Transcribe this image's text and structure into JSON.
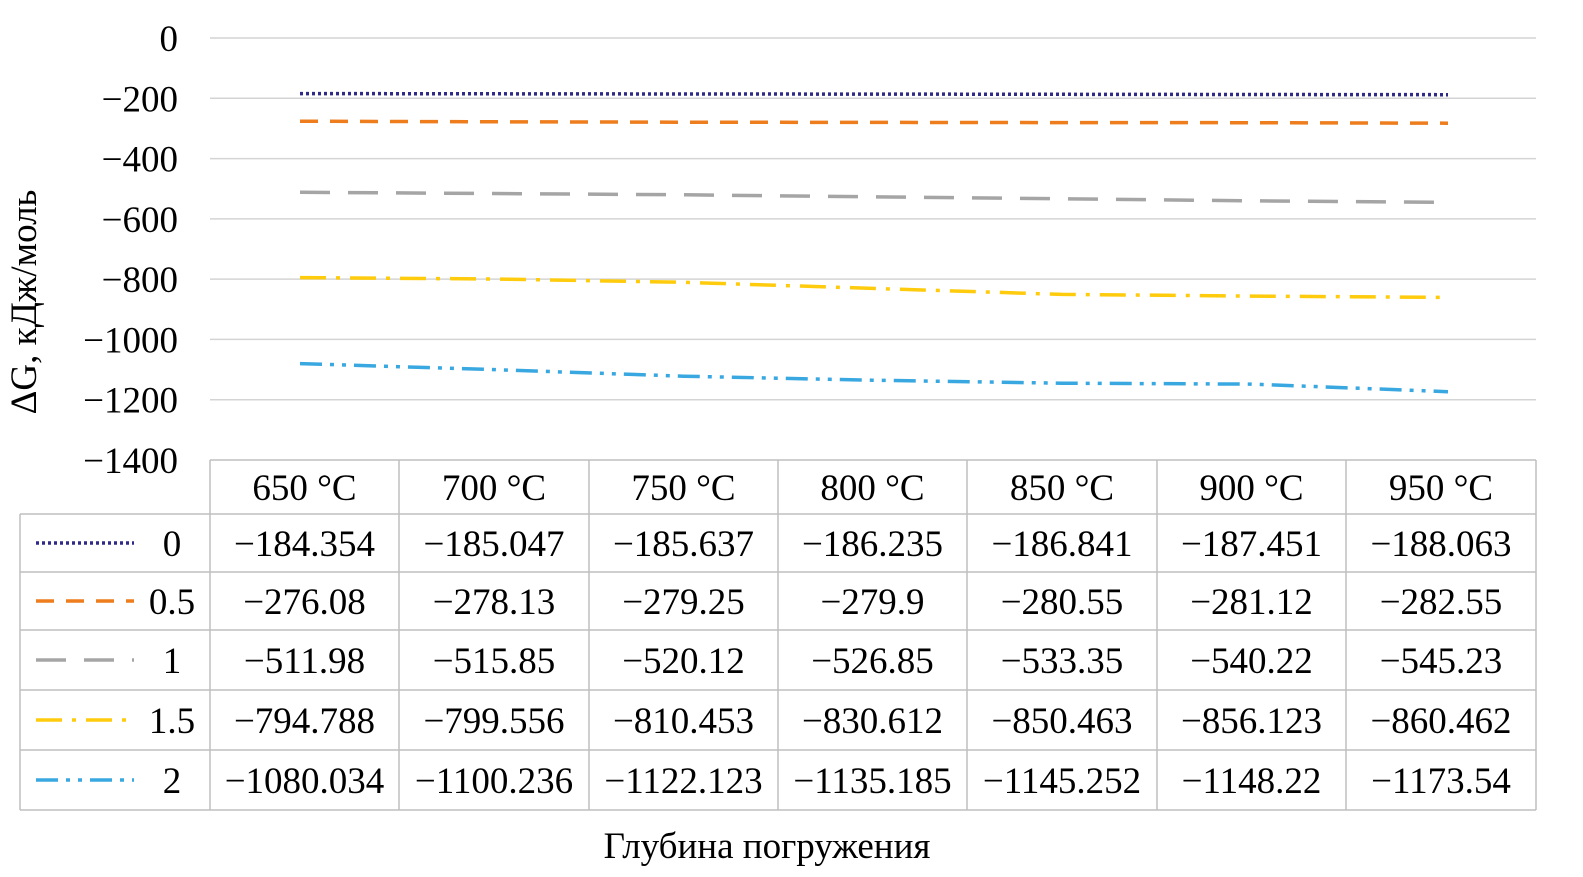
{
  "chart_data": {
    "type": "line",
    "ylabel": "ΔG, кДж/моль",
    "xlabel": "Глубина погружения",
    "ylim": [
      -1400,
      0
    ],
    "yticks": [
      "0",
      "−200",
      "−400",
      "−600",
      "−800",
      "−1000",
      "−1200",
      "−1400"
    ],
    "ytick_values": [
      0,
      -200,
      -400,
      -600,
      -800,
      -1000,
      -1200,
      -1400
    ],
    "categories": [
      "650 °C",
      "700 °C",
      "750 °C",
      "800 °C",
      "850 °C",
      "900 °C",
      "950 °C"
    ],
    "grid": "horizontal",
    "legend": "data-table",
    "series": [
      {
        "name": "0",
        "color": "#2e2a85",
        "dash": "dotted",
        "values": [
          -184.354,
          -185.047,
          -185.637,
          -186.235,
          -186.841,
          -187.451,
          -188.063
        ],
        "labels": [
          "−184.354",
          "−185.047",
          "−185.637",
          "−186.235",
          "−186.841",
          "−187.451",
          "−188.063"
        ]
      },
      {
        "name": "0.5",
        "color": "#ee7d1e",
        "dash": "dash",
        "values": [
          -276.08,
          -278.13,
          -279.25,
          -279.9,
          -280.55,
          -281.12,
          -282.55
        ],
        "labels": [
          "−276.08",
          "−278.13",
          "−279.25",
          "−279.9",
          "−280.55",
          "−281.12",
          "−282.55"
        ]
      },
      {
        "name": "1",
        "color": "#a5a5a5",
        "dash": "longdash",
        "values": [
          -511.98,
          -515.85,
          -520.12,
          -526.85,
          -533.35,
          -540.22,
          -545.23
        ],
        "labels": [
          "−511.98",
          "−515.85",
          "−520.12",
          "−526.85",
          "−533.35",
          "−540.22",
          "−545.23"
        ]
      },
      {
        "name": "1.5",
        "color": "#fecb0d",
        "dash": "dashdot",
        "values": [
          -794.788,
          -799.556,
          -810.453,
          -830.612,
          -850.463,
          -856.123,
          -860.462
        ],
        "labels": [
          "−794.788",
          "−799.556",
          "−810.453",
          "−830.612",
          "−850.463",
          "−856.123",
          "−860.462"
        ]
      },
      {
        "name": "2",
        "color": "#3aa8e0",
        "dash": "dashdotdot",
        "values": [
          -1080.034,
          -1100.236,
          -1122.123,
          -1135.185,
          -1145.252,
          -1148.22,
          -1173.54
        ],
        "labels": [
          "−1080.034",
          "−1100.236",
          "−1122.123",
          "−1135.185",
          "−1145.252",
          "−1148.22",
          "−1173.54"
        ]
      }
    ]
  }
}
